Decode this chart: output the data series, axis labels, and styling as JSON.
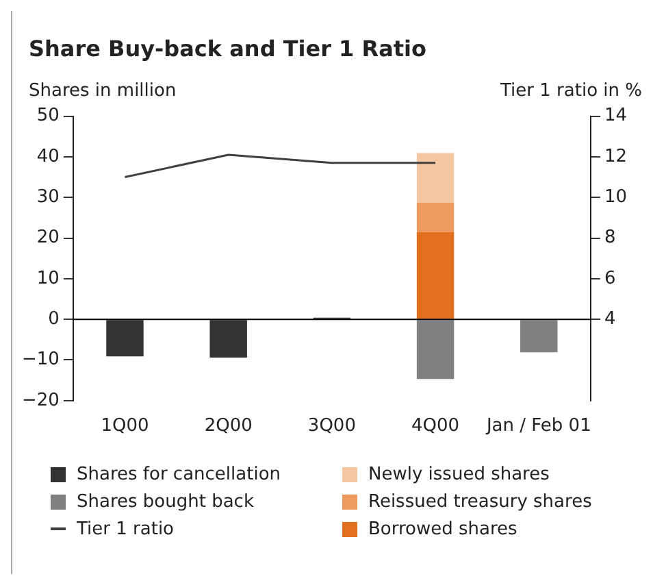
{
  "chart_data": {
    "type": "bar",
    "title": "Share Buy-back and Tier 1 Ratio",
    "ylabel": "Shares in million",
    "y2label": "Tier 1 ratio in %",
    "categories": [
      "1Q00",
      "2Q00",
      "3Q00",
      "4Q00",
      "Jan / Feb 01"
    ],
    "stacked": true,
    "series": [
      {
        "name": "Shares for cancellation",
        "color": "#333333",
        "values": [
          -9.1,
          -9.4,
          0.4,
          null,
          null
        ]
      },
      {
        "name": "Shares bought back",
        "color": "#808080",
        "values": [
          null,
          null,
          null,
          -14.7,
          -8.1
        ]
      },
      {
        "name": "Tier 1 ratio",
        "type": "line",
        "axis": "y2",
        "color": "#404040",
        "values": [
          11.0,
          12.1,
          11.7,
          11.7,
          null
        ]
      },
      {
        "name": "Borrowed shares",
        "color": "#e06f1e",
        "values": [
          null,
          null,
          null,
          21.5,
          null
        ]
      },
      {
        "name": "Reissued treasury shares",
        "color": "#ec9a60",
        "values": [
          null,
          null,
          null,
          7.2,
          null
        ]
      },
      {
        "name": "Newly issued shares",
        "color": "#f5c7a3",
        "values": [
          null,
          null,
          null,
          12.2,
          null
        ]
      }
    ],
    "ylim": [
      -20,
      50
    ],
    "yticks": [
      -20,
      -10,
      0,
      10,
      20,
      30,
      40,
      50
    ],
    "y2lim": [
      0,
      14
    ],
    "y2ticks": [
      4,
      6,
      8,
      10,
      12,
      14
    ],
    "legend": "bottom"
  }
}
